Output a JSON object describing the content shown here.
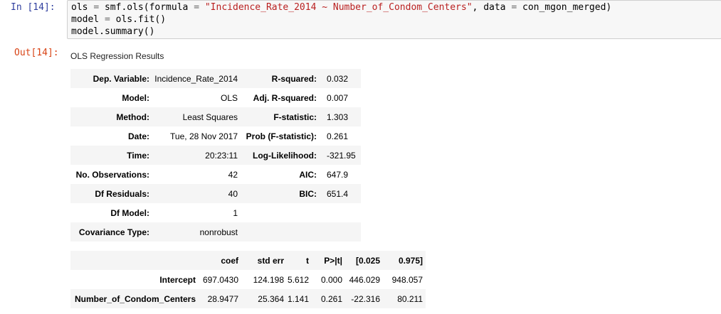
{
  "cell": {
    "in_prompt": "In [14]:",
    "out_prompt": "Out[14]:",
    "code": {
      "line1_a": "ols ",
      "line1_eq": "=",
      "line1_b": " smf.ols(formula ",
      "line1_eq2": "=",
      "line1_str": " \"Incidence_Rate_2014 ~ Number_of_Condom_Centers\"",
      "line1_c": ", data ",
      "line1_eq3": "=",
      "line1_d": " con_mgon_merged)",
      "line2_a": "model ",
      "line2_eq": "=",
      "line2_b": " ols.fit()",
      "line3": "model.summary()"
    }
  },
  "output": {
    "title": "OLS Regression Results",
    "summary_rows": [
      {
        "l1": "Dep. Variable:",
        "v1": "Incidence_Rate_2014",
        "l2": "R-squared:",
        "v2": "0.032"
      },
      {
        "l1": "Model:",
        "v1": "OLS",
        "l2": "Adj. R-squared:",
        "v2": "0.007"
      },
      {
        "l1": "Method:",
        "v1": "Least Squares",
        "l2": "F-statistic:",
        "v2": "1.303"
      },
      {
        "l1": "Date:",
        "v1": "Tue, 28 Nov 2017",
        "l2": "Prob (F-statistic):",
        "v2": "0.261"
      },
      {
        "l1": "Time:",
        "v1": "20:23:11",
        "l2": "Log-Likelihood:",
        "v2": "-321.95"
      },
      {
        "l1": "No. Observations:",
        "v1": "42",
        "l2": "AIC:",
        "v2": "647.9"
      },
      {
        "l1": "Df Residuals:",
        "v1": "40",
        "l2": "BIC:",
        "v2": "651.4"
      },
      {
        "l1": "Df Model:",
        "v1": "1",
        "l2": "",
        "v2": ""
      },
      {
        "l1": "Covariance Type:",
        "v1": "nonrobust",
        "l2": "",
        "v2": ""
      }
    ],
    "coef_headers": [
      "",
      "coef",
      "std err",
      "t",
      "P>|t|",
      "[0.025",
      "0.975]"
    ],
    "coef_rows": [
      {
        "name": "Intercept",
        "values": [
          "697.0430",
          "124.198",
          "5.612",
          "0.000",
          "446.029",
          "948.057"
        ]
      },
      {
        "name": "Number_of_Condom_Centers",
        "values": [
          "28.9477",
          "25.364",
          "1.141",
          "0.261",
          "-22.316",
          "80.211"
        ]
      }
    ]
  }
}
